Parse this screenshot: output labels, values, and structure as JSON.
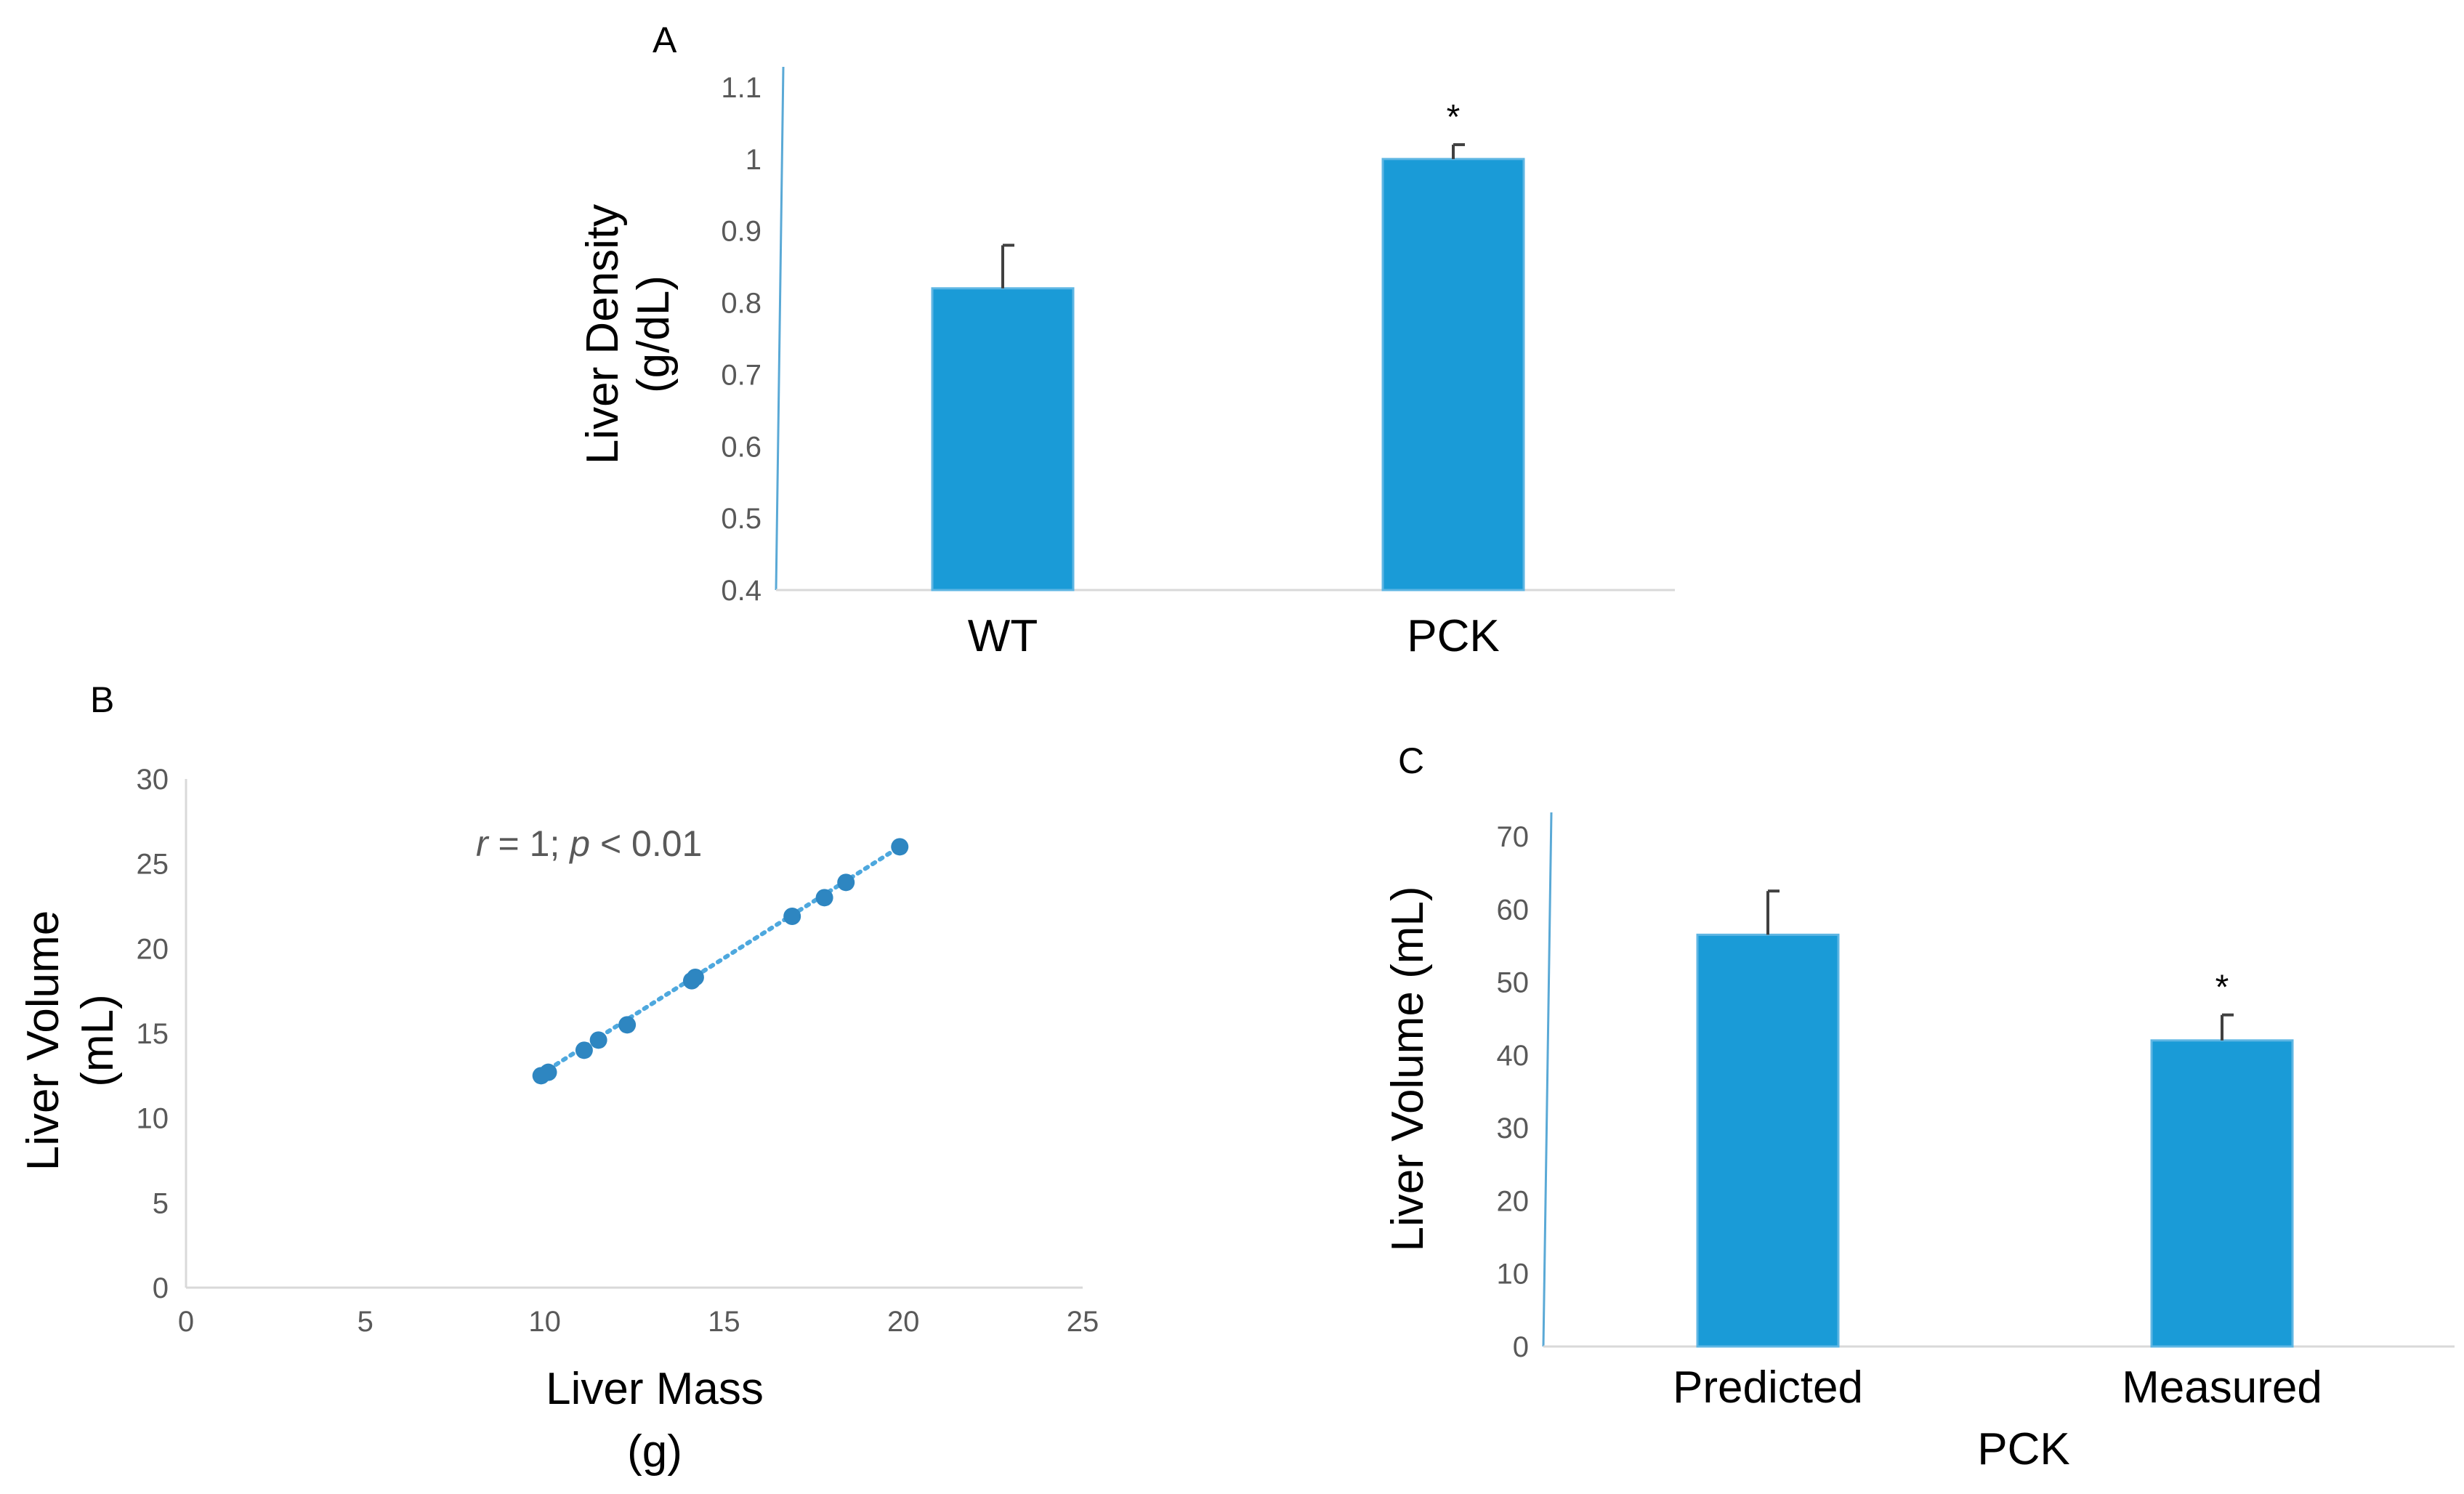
{
  "colors": {
    "bar": "#1a9bd7",
    "bar_edge": "#5fb6e3",
    "axis": "#5aa9d6",
    "tick_text": "#595959",
    "error_bar": "#404040",
    "scatter": "#2e86c1",
    "trend": "#4ea8de"
  },
  "chart_data": [
    {
      "panel": "A",
      "type": "bar",
      "categories": [
        "WT",
        "PCK"
      ],
      "values": [
        0.82,
        1.0
      ],
      "errors": [
        0.06,
        0.02
      ],
      "significance": [
        "",
        "*"
      ],
      "ylabel_line1": "Liver Density",
      "ylabel_line2": "(g/dL)",
      "ylim": [
        0.4,
        1.1
      ],
      "yticks": [
        "0.4",
        "0.5",
        "0.6",
        "0.7",
        "0.8",
        "0.9",
        "1",
        "1.1"
      ]
    },
    {
      "panel": "B",
      "type": "scatter",
      "x": [
        9.9,
        10.1,
        11.1,
        11.5,
        12.3,
        14.1,
        14.2,
        16.9,
        17.8,
        18.4,
        19.9
      ],
      "y": [
        12.5,
        12.7,
        14.0,
        14.6,
        15.5,
        18.1,
        18.3,
        21.9,
        23.0,
        23.9,
        26.0
      ],
      "trendline": {
        "style": "dotted",
        "x": [
          9.9,
          19.9
        ],
        "y": [
          12.6,
          26.0
        ]
      },
      "annotation": {
        "r_sym": "r",
        "r_rest": " = 1; ",
        "p_sym": "p",
        "p_rest": " < 0.01"
      },
      "xlabel_line1": "Liver Mass",
      "xlabel_line2": "(g)",
      "ylabel_line1": "Liver Volume",
      "ylabel_line2": "(mL)",
      "xlim": [
        0,
        25
      ],
      "ylim": [
        0,
        30
      ],
      "xticks": [
        "0",
        "5",
        "10",
        "15",
        "20",
        "25"
      ],
      "yticks": [
        "0",
        "5",
        "10",
        "15",
        "20",
        "25",
        "30"
      ]
    },
    {
      "panel": "C",
      "type": "bar",
      "categories": [
        "Predicted",
        "Measured"
      ],
      "values": [
        56.5,
        42
      ],
      "errors": [
        6,
        3.5
      ],
      "significance": [
        "",
        "*"
      ],
      "xlabel": "PCK",
      "ylabel": "Liver Volume (mL)",
      "ylim": [
        0,
        70
      ],
      "yticks": [
        "0",
        "10",
        "20",
        "30",
        "40",
        "50",
        "60",
        "70"
      ]
    }
  ]
}
